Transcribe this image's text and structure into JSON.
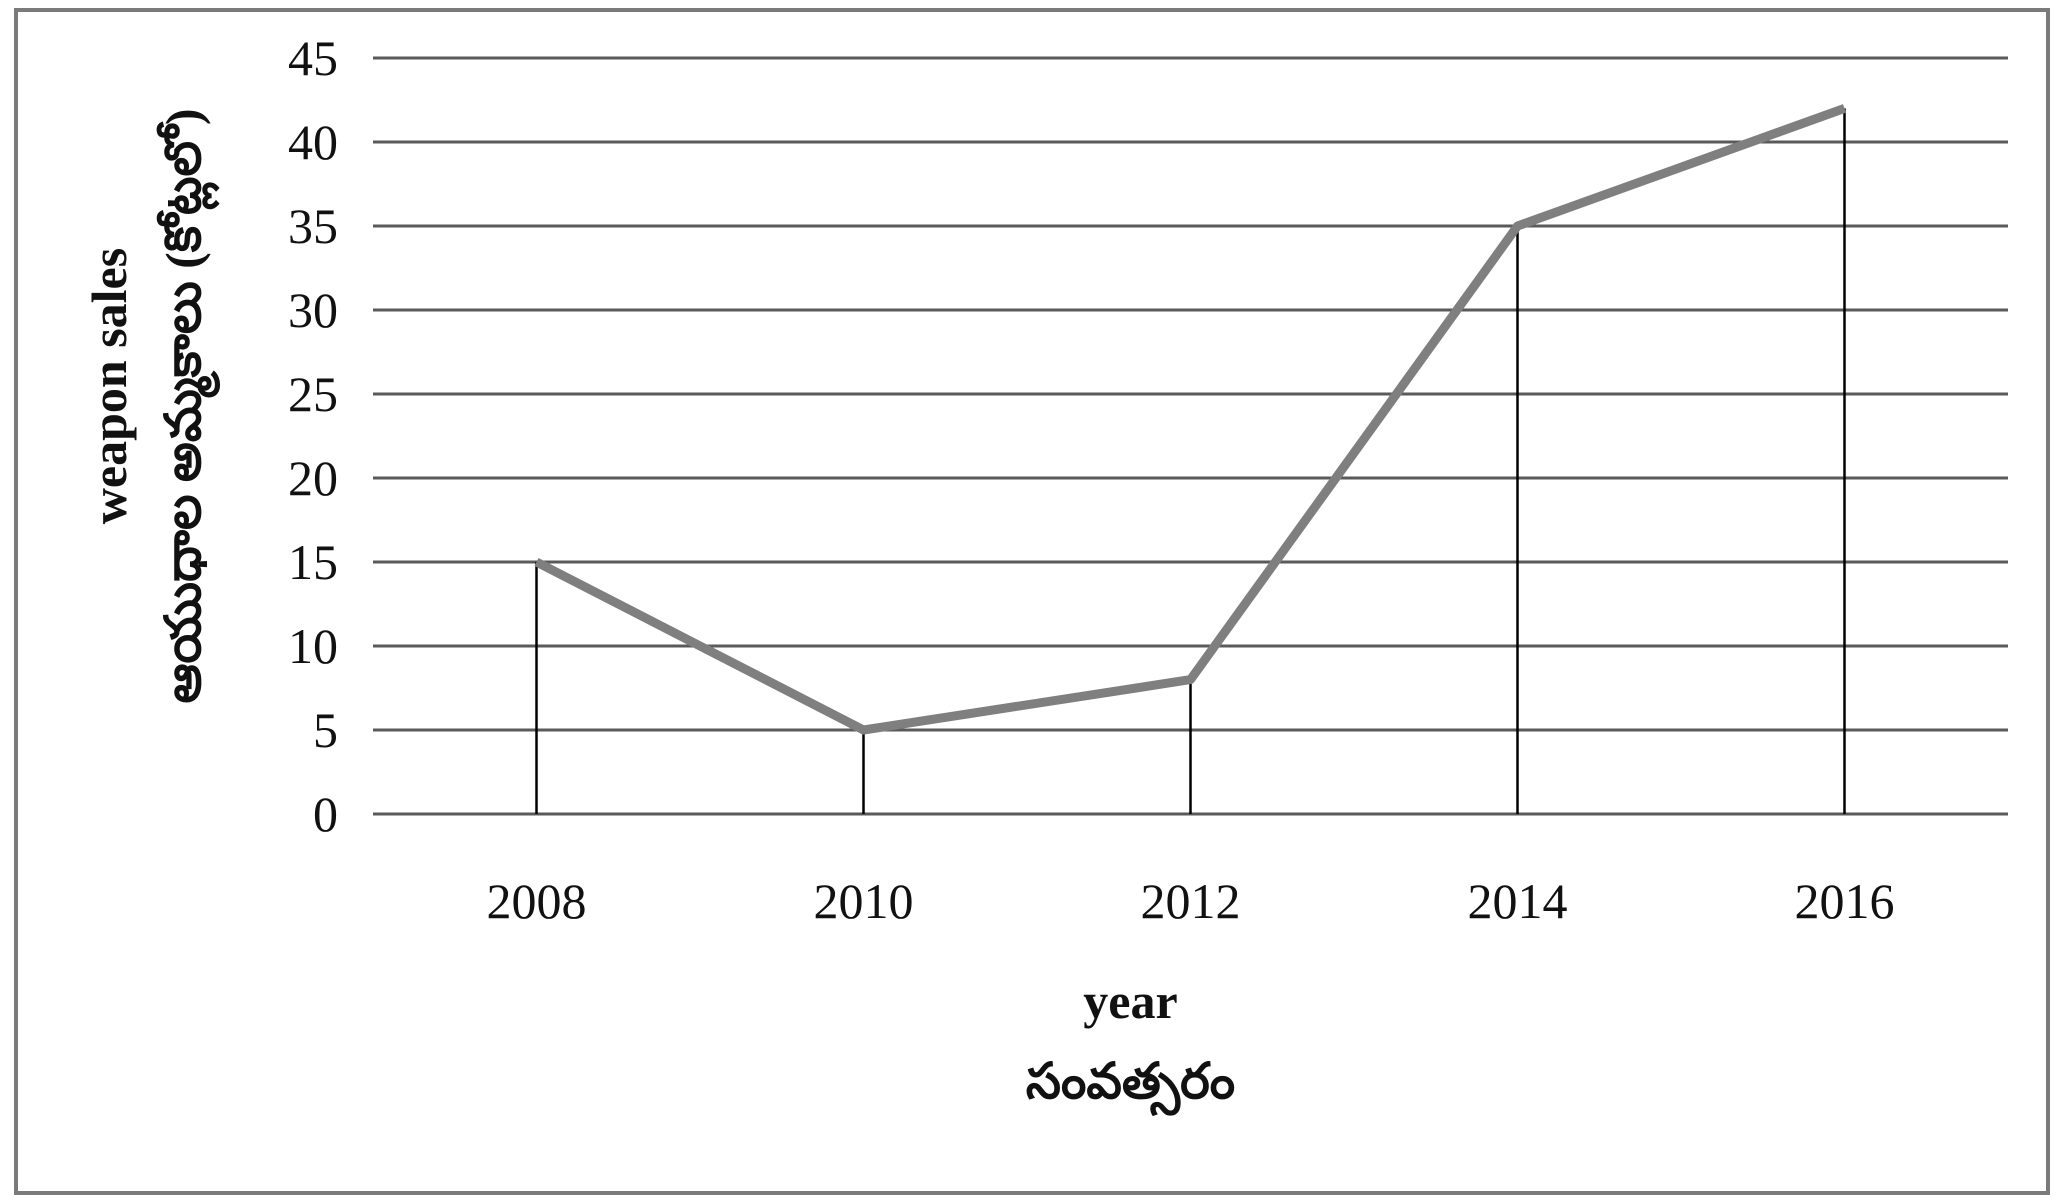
{
  "chart_data": {
    "type": "line",
    "categories": [
      "2008",
      "2010",
      "2012",
      "2014",
      "2016"
    ],
    "series": [
      {
        "values": [
          15,
          5,
          8,
          35,
          42
        ]
      }
    ],
    "ylim": [
      0,
      45
    ],
    "yticks": [
      0,
      5,
      10,
      15,
      20,
      25,
      30,
      35,
      40,
      45
    ],
    "xlabel_lines": [
      "year",
      "సంవత్సరం"
    ],
    "ylabel_lines": [
      "weapon sales",
      "ఆయుధాల అమ్మకాలు (కోట్లలో)"
    ],
    "grid": "horizontal",
    "drop_lines": true,
    "colors": {
      "line": "#7f7f7f",
      "grid": "#5a5a5a",
      "drop": "#000000"
    }
  }
}
